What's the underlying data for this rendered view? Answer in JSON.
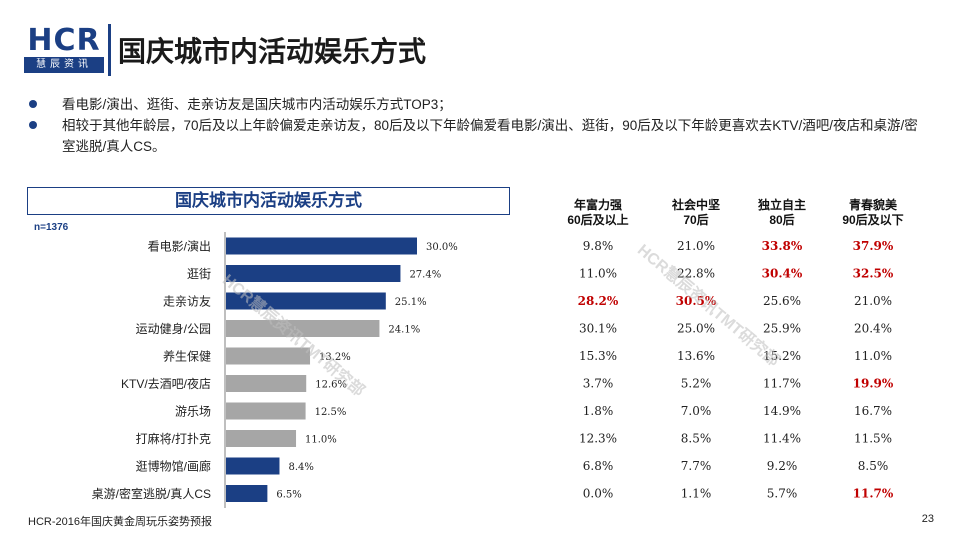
{
  "logo": {
    "text": "HCR",
    "subtext": "慧辰资讯"
  },
  "page_title": "国庆城市内活动娱乐方式",
  "bullets": [
    "看电影/演出、逛街、走亲访友是国庆城市内活动娱乐方式TOP3；",
    "相较于其他年龄层，70后及以上年龄偏爱走亲访友，80后及以下年龄偏爱看电影/演出、逛街，90后及以下年龄更喜欢去KTV/酒吧/夜店和桌游/密室逃脱/真人CS。"
  ],
  "watermark": [
    "HCR慧辰资讯TMT研究部",
    "HCR慧辰资讯TMT研究部"
  ],
  "footer": "HCR-2016年国庆黄金周玩乐姿势预报",
  "page_number": "23",
  "colors": {
    "brand": "#1b3f84",
    "bar_blue": "#1b3f84",
    "bar_gray": "#a6a6a6",
    "highlight": "#c00000"
  },
  "chart_data": {
    "type": "bar",
    "orientation": "horizontal",
    "title": "国庆城市内活动娱乐方式",
    "sample_label": "n=1376",
    "categories": [
      "看电影/演出",
      "逛街",
      "走亲访友",
      "运动健身/公园",
      "养生保健",
      "KTV/去酒吧/夜店",
      "游乐场",
      "打麻将/打扑克",
      "逛博物馆/画廊",
      "桌游/密室逃脱/真人CS"
    ],
    "values": [
      30.0,
      27.4,
      25.1,
      24.1,
      13.2,
      12.6,
      12.5,
      11.0,
      8.4,
      6.5
    ],
    "value_labels": [
      "30.0%",
      "27.4%",
      "25.1%",
      "24.1%",
      "13.2%",
      "12.6%",
      "12.5%",
      "11.0%",
      "8.4%",
      "6.5%"
    ],
    "bar_colors": [
      "blue",
      "blue",
      "blue",
      "gray",
      "gray",
      "gray",
      "gray",
      "gray",
      "blue",
      "blue"
    ],
    "xlim": [
      0,
      30
    ],
    "table": {
      "columns": [
        {
          "line1": "年富力强",
          "line2": "60后及以上"
        },
        {
          "line1": "社会中坚",
          "line2": "70后"
        },
        {
          "line1": "独立自主",
          "line2": "80后"
        },
        {
          "line1": "青春貌美",
          "line2": "90后及以下"
        }
      ],
      "rows": [
        [
          "9.8%",
          "21.0%",
          "33.8%",
          "37.9%"
        ],
        [
          "11.0%",
          "22.8%",
          "30.4%",
          "32.5%"
        ],
        [
          "28.2%",
          "30.5%",
          "25.6%",
          "21.0%"
        ],
        [
          "30.1%",
          "25.0%",
          "25.9%",
          "20.4%"
        ],
        [
          "15.3%",
          "13.6%",
          "15.2%",
          "11.0%"
        ],
        [
          "3.7%",
          "5.2%",
          "11.7%",
          "19.9%"
        ],
        [
          "1.8%",
          "7.0%",
          "14.9%",
          "16.7%"
        ],
        [
          "12.3%",
          "8.5%",
          "11.4%",
          "11.5%"
        ],
        [
          "6.8%",
          "7.7%",
          "9.2%",
          "8.5%"
        ],
        [
          "0.0%",
          "1.1%",
          "5.7%",
          "11.7%"
        ]
      ],
      "highlighted": [
        [
          0,
          2
        ],
        [
          0,
          3
        ],
        [
          1,
          2
        ],
        [
          1,
          3
        ],
        [
          2,
          0
        ],
        [
          2,
          1
        ],
        [
          5,
          3
        ],
        [
          9,
          3
        ]
      ]
    }
  }
}
